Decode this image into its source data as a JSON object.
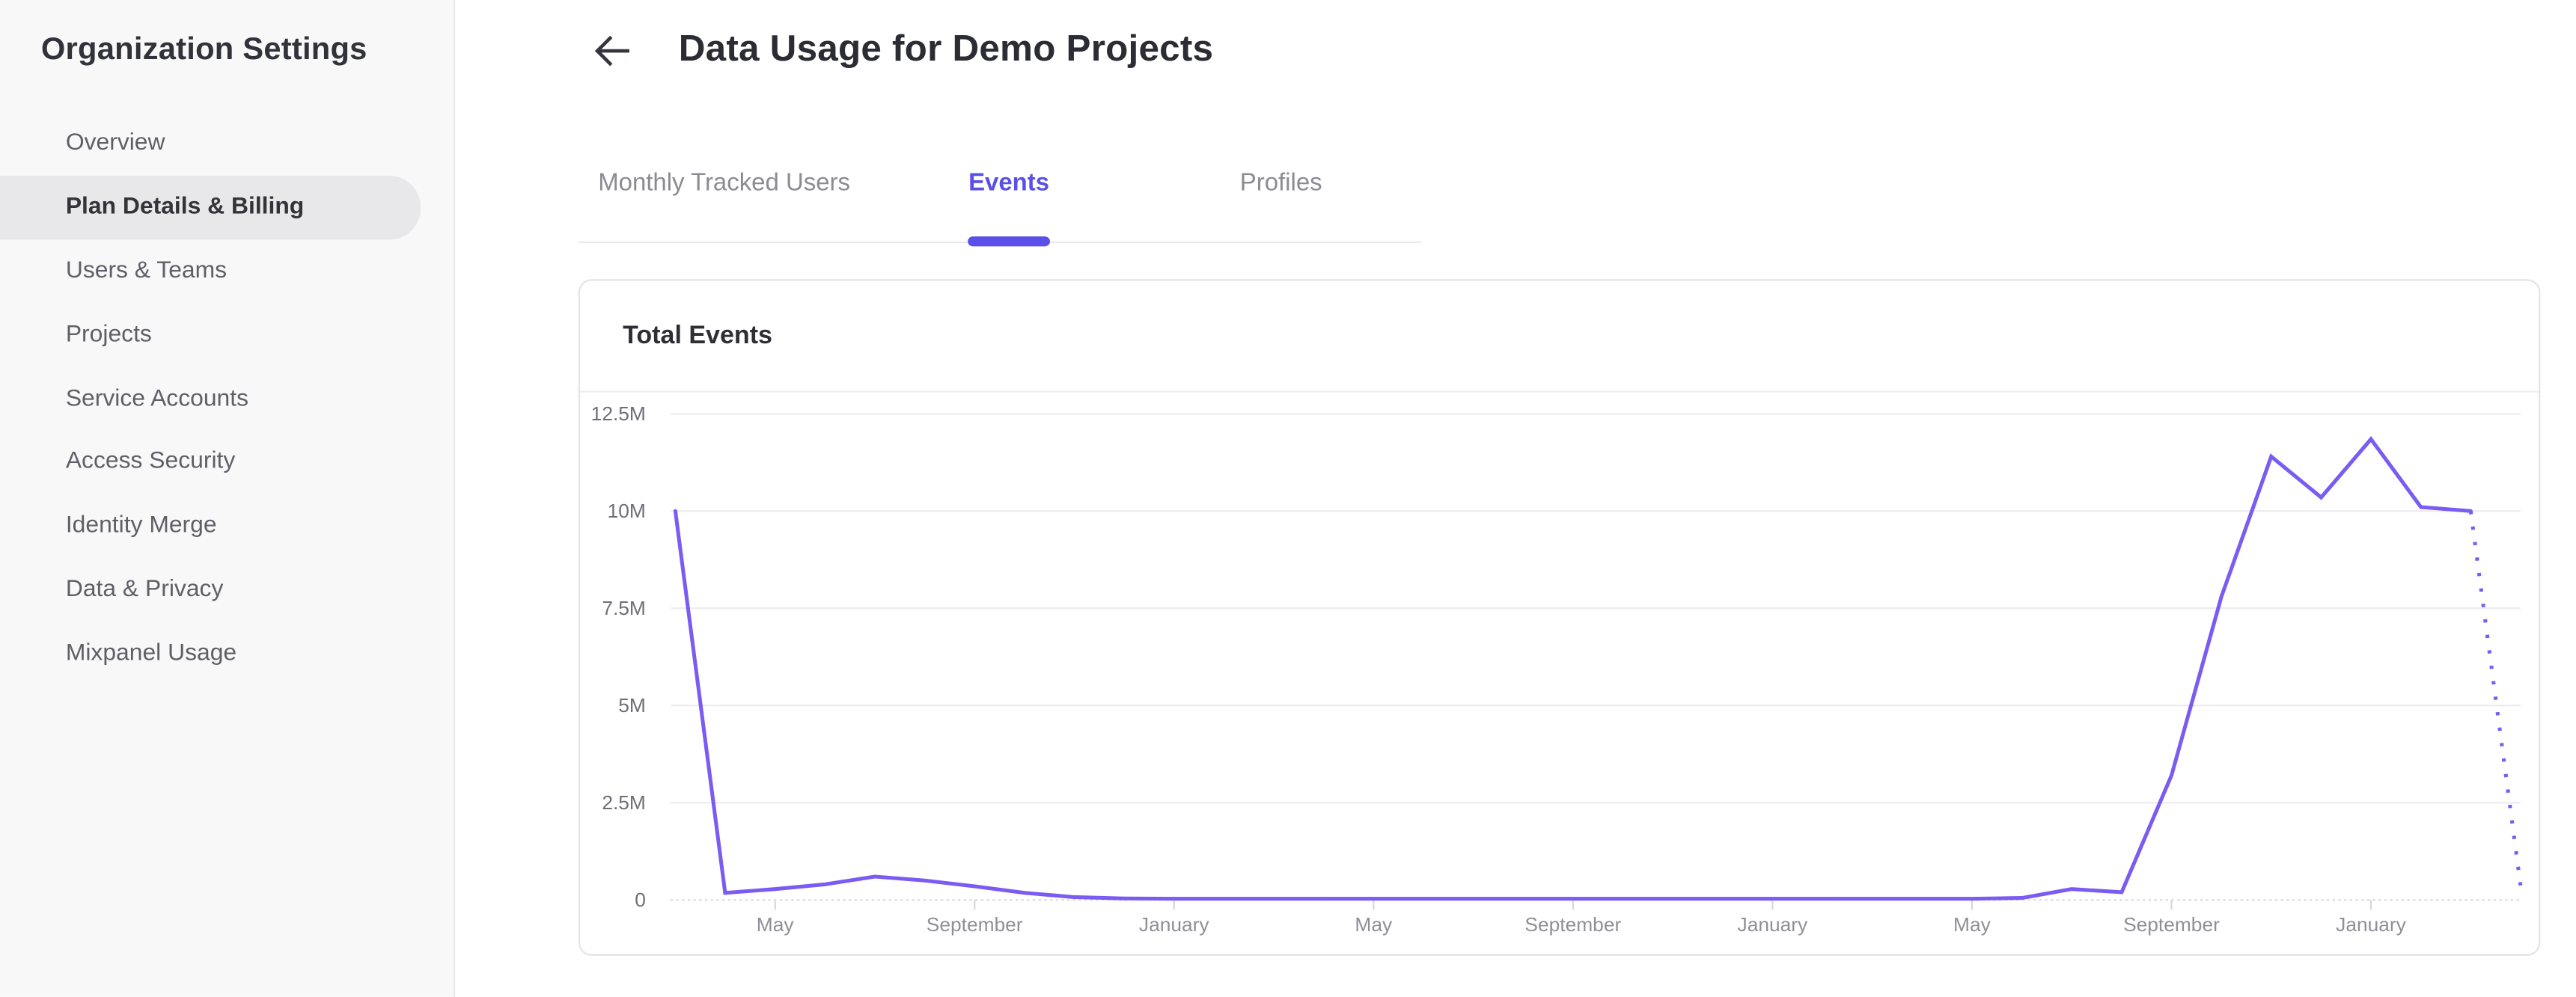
{
  "sidebar": {
    "title": "Organization Settings",
    "items": [
      {
        "label": "Overview",
        "active": false
      },
      {
        "label": "Plan Details & Billing",
        "active": true
      },
      {
        "label": "Users & Teams",
        "active": false
      },
      {
        "label": "Projects",
        "active": false
      },
      {
        "label": "Service Accounts",
        "active": false
      },
      {
        "label": "Access Security",
        "active": false
      },
      {
        "label": "Identity Merge",
        "active": false
      },
      {
        "label": "Data & Privacy",
        "active": false
      },
      {
        "label": "Mixpanel Usage",
        "active": false
      }
    ]
  },
  "header": {
    "title": "Data Usage for Demo Projects",
    "back_icon": "arrow-left"
  },
  "tabs": {
    "items": [
      {
        "label": "Monthly Tracked Users",
        "active": false
      },
      {
        "label": "Events",
        "active": true
      },
      {
        "label": "Profiles",
        "active": false
      }
    ]
  },
  "card": {
    "title": "Total Events"
  },
  "colors": {
    "accent": "#5a4fe8",
    "line": "#7a5cf2",
    "sidebar_active_bg": "#e8e8ea",
    "grid": "#ececf0",
    "zero_line": "#d9d9de",
    "tick": "#d7d7db",
    "y_label": "#6e6e76",
    "x_label": "#8f8f97"
  },
  "chart_data": {
    "type": "line",
    "title": "Total Events",
    "series_name": "Total Events",
    "x_unit": "month_index",
    "x_tick_labels": [
      "May",
      "September",
      "January",
      "May",
      "September",
      "January",
      "May",
      "September",
      "January"
    ],
    "x_tick_month_index": [
      2,
      6,
      10,
      14,
      18,
      22,
      26,
      30,
      34
    ],
    "y_tick_labels": [
      "12.5M",
      "10M",
      "7.5M",
      "5M",
      "2.5M",
      "0"
    ],
    "ylim_millions": [
      0,
      12.5
    ],
    "grid": true,
    "legend": false,
    "values_millions": [
      10,
      0.18,
      0.28,
      0.4,
      0.6,
      0.5,
      0.35,
      0.18,
      0.07,
      0.04,
      0.03,
      0.03,
      0.03,
      0.03,
      0.03,
      0.03,
      0.03,
      0.03,
      0.03,
      0.03,
      0.03,
      0.03,
      0.03,
      0.03,
      0.03,
      0.03,
      0.03,
      0.05,
      0.28,
      0.2,
      3.2,
      7.8,
      11.4,
      10.35,
      11.85,
      10.1,
      10
    ],
    "projection": {
      "style": "dotted",
      "start_month_index": 36,
      "values_millions": [
        10,
        0.35
      ]
    }
  }
}
